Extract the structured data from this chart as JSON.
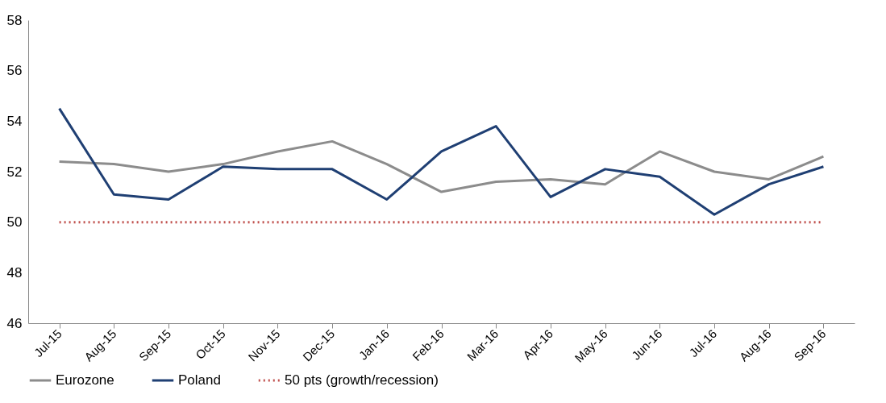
{
  "chart_data": {
    "type": "line",
    "categories": [
      "Jul-15",
      "Aug-15",
      "Sep-15",
      "Oct-15",
      "Nov-15",
      "Dec-15",
      "Jan-16",
      "Feb-16",
      "Mar-16",
      "Apr-16",
      "May-16",
      "Jun-16",
      "Jul-16",
      "Aug-16",
      "Sep-16"
    ],
    "series": [
      {
        "name": "Eurozone",
        "color": "#8c8c8c",
        "line_style": "solid",
        "values": [
          52.4,
          52.3,
          52.0,
          52.3,
          52.8,
          53.2,
          52.3,
          51.2,
          51.6,
          51.7,
          51.5,
          52.8,
          52.0,
          51.7,
          52.6
        ]
      },
      {
        "name": "Poland",
        "color": "#1f3f73",
        "line_style": "solid",
        "values": [
          54.5,
          51.1,
          50.9,
          52.2,
          52.1,
          52.1,
          50.9,
          52.8,
          53.8,
          51.0,
          52.1,
          51.8,
          50.3,
          51.5,
          52.2
        ]
      },
      {
        "name": "50 pts (growth/recession)",
        "color": "#c0504d",
        "line_style": "dotted",
        "values": [
          50,
          50,
          50,
          50,
          50,
          50,
          50,
          50,
          50,
          50,
          50,
          50,
          50,
          50,
          50
        ]
      }
    ],
    "ylim": [
      46,
      58
    ],
    "yticks": [
      46,
      48,
      50,
      52,
      54,
      56,
      58
    ],
    "grid": false,
    "legend": "bottom",
    "marker": "none"
  }
}
